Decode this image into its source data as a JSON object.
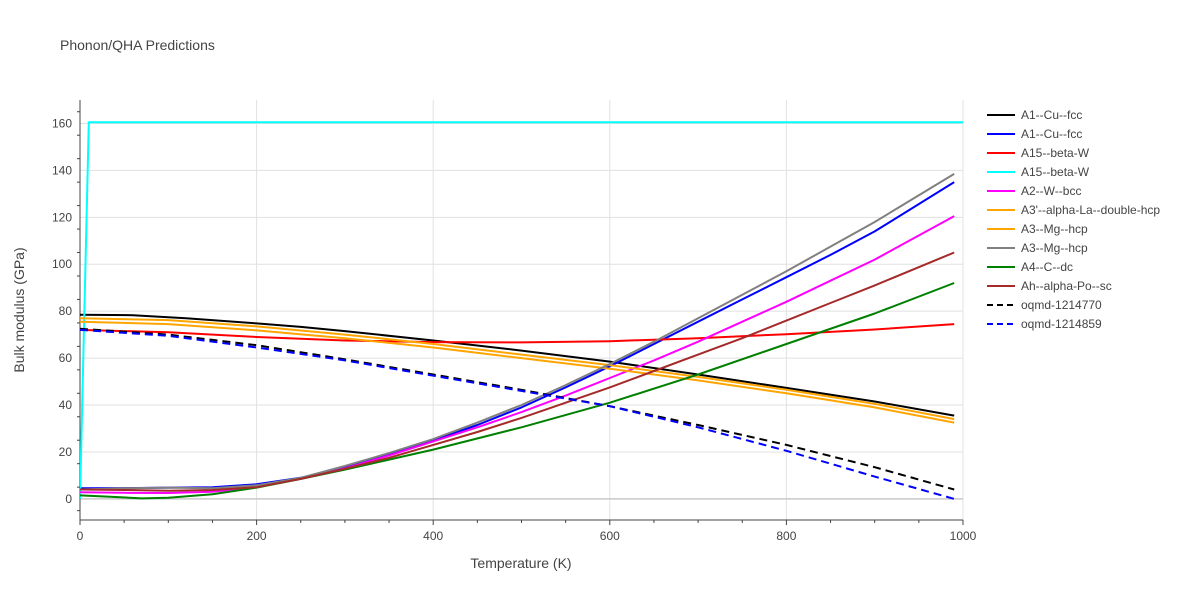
{
  "chart_data": {
    "type": "line",
    "title": "Phonon/QHA Predictions",
    "xlabel": "Temperature (K)",
    "ylabel": "Bulk modulus (GPa)",
    "xlim": [
      0,
      1000
    ],
    "ylim": [
      -9,
      170
    ],
    "xticks": [
      0,
      200,
      400,
      600,
      800,
      1000
    ],
    "yticks": [
      0,
      20,
      40,
      60,
      80,
      100,
      120,
      140,
      160
    ],
    "grid": true,
    "legend_position": "right",
    "series": [
      {
        "name": "A1--Cu--fcc",
        "color": "#000000",
        "dash": "solid",
        "x": [
          0,
          60,
          120,
          200,
          250,
          300,
          400,
          500,
          600,
          700,
          800,
          900,
          990
        ],
        "y": [
          78.5,
          78.3,
          77.0,
          74.8,
          73.3,
          71.5,
          67.5,
          63.2,
          58.5,
          53.0,
          47.3,
          41.5,
          35.5
        ]
      },
      {
        "name": "A1--Cu--fcc",
        "color": "#0000ff",
        "dash": "solid",
        "x": [
          0,
          50,
          100,
          150,
          200,
          250,
          300,
          350,
          400,
          450,
          500,
          550,
          600,
          650,
          700,
          750,
          800,
          850,
          900,
          990
        ],
        "y": [
          4.5,
          4.6,
          4.8,
          5.0,
          6.2,
          9.0,
          13.5,
          19.0,
          25.0,
          31.5,
          39.0,
          47.5,
          56.5,
          66.0,
          75.5,
          85.0,
          94.5,
          104.0,
          114.0,
          135.0
        ]
      },
      {
        "name": "A15--beta-W",
        "color": "#ff0000",
        "dash": "solid",
        "x": [
          0,
          100,
          200,
          300,
          400,
          500,
          600,
          700,
          800,
          900,
          990
        ],
        "y": [
          72.0,
          71.0,
          69.0,
          67.5,
          66.8,
          66.7,
          67.2,
          68.5,
          70.2,
          72.2,
          74.5
        ]
      },
      {
        "name": "A15--beta-W",
        "color": "#00ffff",
        "dash": "solid",
        "x": [
          0,
          10,
          1000
        ],
        "y": [
          0,
          160.5,
          160.5
        ]
      },
      {
        "name": "A2--W--bcc",
        "color": "#ff00ff",
        "dash": "solid",
        "x": [
          0,
          50,
          100,
          150,
          200,
          250,
          300,
          350,
          400,
          450,
          500,
          550,
          600,
          650,
          700,
          750,
          800,
          850,
          900,
          990
        ],
        "y": [
          2.8,
          2.6,
          2.5,
          3.0,
          5.0,
          8.5,
          13.0,
          18.5,
          24.5,
          30.5,
          37.0,
          44.0,
          51.5,
          59.0,
          67.0,
          75.5,
          84.0,
          93.0,
          102.0,
          120.5
        ]
      },
      {
        "name": "A3'--alpha-La--double-hcp",
        "color": "#ffa500",
        "dash": "solid",
        "x": [
          0,
          100,
          200,
          300,
          400,
          500,
          600,
          700,
          800,
          900,
          990
        ],
        "y": [
          77.0,
          76.2,
          73.5,
          70.0,
          66.0,
          61.5,
          57.0,
          52.0,
          46.5,
          40.5,
          34.0
        ]
      },
      {
        "name": "A3--Mg--hcp",
        "color": "#ffa500",
        "dash": "solid",
        "x": [
          0,
          100,
          200,
          300,
          400,
          500,
          600,
          700,
          800,
          900,
          990
        ],
        "y": [
          75.5,
          74.5,
          71.8,
          68.5,
          64.5,
          60.0,
          55.5,
          50.5,
          45.0,
          39.0,
          32.5
        ]
      },
      {
        "name": "A3--Mg--hcp",
        "color": "#808080",
        "dash": "solid",
        "x": [
          0,
          50,
          100,
          150,
          200,
          250,
          300,
          350,
          400,
          450,
          500,
          550,
          600,
          650,
          700,
          750,
          800,
          850,
          900,
          990
        ],
        "y": [
          4.0,
          4.5,
          4.8,
          4.5,
          5.8,
          9.0,
          14.0,
          19.5,
          25.5,
          32.5,
          40.0,
          48.5,
          57.5,
          67.0,
          77.0,
          87.0,
          97.0,
          107.5,
          118.0,
          138.5
        ]
      },
      {
        "name": "A4--C--dc",
        "color": "#008000",
        "dash": "solid",
        "x": [
          0,
          40,
          70,
          100,
          150,
          200,
          250,
          300,
          400,
          500,
          600,
          700,
          800,
          900,
          990
        ],
        "y": [
          1.5,
          0.8,
          0.2,
          0.5,
          2.0,
          4.8,
          8.5,
          12.5,
          21.0,
          30.5,
          41.0,
          53.0,
          66.0,
          79.0,
          92.0
        ]
      },
      {
        "name": "Ah--alpha-Po--sc",
        "color": "#a52a2a",
        "dash": "solid",
        "x": [
          0,
          50,
          100,
          150,
          200,
          250,
          300,
          350,
          400,
          450,
          500,
          550,
          600,
          650,
          700,
          750,
          800,
          850,
          900,
          990
        ],
        "y": [
          4.0,
          3.8,
          3.5,
          3.8,
          5.0,
          8.5,
          12.8,
          17.5,
          23.0,
          28.5,
          34.5,
          41.0,
          47.5,
          54.5,
          61.5,
          68.5,
          76.0,
          83.5,
          91.0,
          105.0
        ]
      },
      {
        "name": "oqmd-1214770",
        "color": "#000000",
        "dash": "dash",
        "x": [
          0,
          100,
          200,
          300,
          400,
          500,
          600,
          700,
          800,
          900,
          990
        ],
        "y": [
          72.5,
          70.0,
          65.5,
          59.5,
          53.0,
          46.5,
          39.5,
          31.5,
          23.0,
          13.5,
          4.0
        ]
      },
      {
        "name": "oqmd-1214859",
        "color": "#0000ff",
        "dash": "dash",
        "x": [
          0,
          100,
          200,
          300,
          400,
          500,
          600,
          700,
          800,
          900,
          990
        ],
        "y": [
          72.0,
          69.5,
          64.5,
          59.0,
          52.5,
          46.0,
          39.5,
          30.5,
          20.5,
          9.5,
          0.0
        ]
      }
    ]
  }
}
